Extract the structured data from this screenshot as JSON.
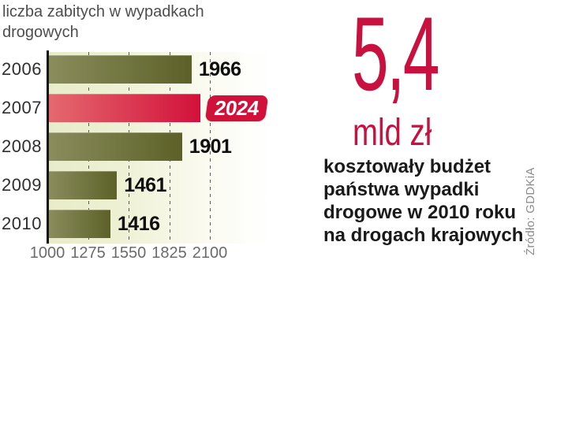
{
  "title": "liczba zabitych w wypadkach drogowych",
  "chart_data": {
    "type": "bar",
    "orientation": "horizontal",
    "title": "liczba zabitych w wypadkach drogowych",
    "categories": [
      "2006",
      "2007",
      "2008",
      "2009",
      "2010"
    ],
    "values": [
      1966,
      2024,
      1901,
      1461,
      1416
    ],
    "highlighted_category": "2007",
    "x_axis_min": 1000,
    "x_ticks": [
      1000,
      1275,
      1550,
      1825,
      2100
    ],
    "gridlines": "dashed-vertical",
    "legend": "none",
    "colors": {
      "bar_gradient_start": "#8a8d5c",
      "bar_gradient_end": "#5c6128",
      "highlight_gradient_start": "#e5696f",
      "highlight_gradient_end": "#d2113a",
      "highlight_badge": "#d2113a",
      "plot_background_start": "#e9ecc9",
      "plot_background_end": "#ffffff"
    }
  },
  "right_panel": {
    "big_number": "5,4",
    "unit": "mld zł",
    "description": "kosztowały budżet państwa wypadki drogowe w 2010 roku na drogach krajowych",
    "source": "Źródło: GDDKiA",
    "accent_color": "#c8113e"
  }
}
